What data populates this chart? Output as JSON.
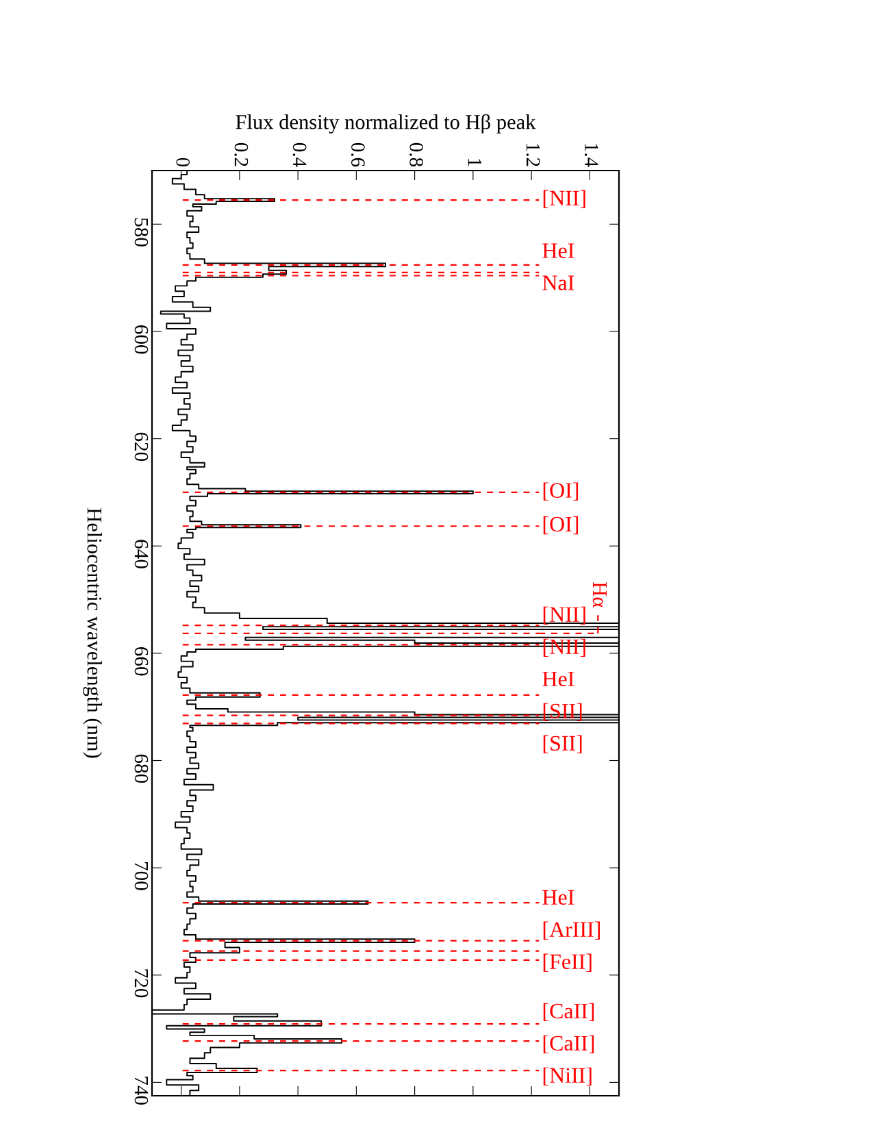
{
  "chart_data": {
    "type": "step",
    "orientation": "horizontal",
    "xlabel": "Flux density normalized to Hβ peak",
    "ylabel": "Heliocentric wavelength (nm)",
    "xlim": [
      -0.1,
      1.5
    ],
    "xticks": [
      0,
      0.2,
      0.4,
      0.6,
      0.8,
      1,
      1.2,
      1.4
    ],
    "ylim": [
      742.5,
      570
    ],
    "yticks": [
      580,
      600,
      620,
      640,
      660,
      680,
      700,
      720,
      740
    ],
    "grid": false,
    "legend": false,
    "series": [
      {
        "color": "#000000",
        "x": [
          570.5,
          571,
          572,
          573,
          574,
          575,
          575.5,
          576,
          576.5,
          577,
          578,
          579,
          580,
          581,
          582,
          583,
          584,
          585,
          586,
          587,
          587.6,
          588.2,
          589.0,
          589.6,
          590.2,
          591,
          592,
          593,
          594,
          595,
          596,
          596.5,
          597,
          598,
          599,
          600,
          601,
          602,
          603,
          604,
          605,
          606,
          607,
          608,
          609,
          610,
          611,
          612,
          613,
          614,
          615,
          616,
          617,
          618,
          619,
          620,
          621,
          622,
          623,
          624,
          625,
          625.5,
          626,
          627,
          628,
          629,
          629.6,
          630.0,
          630.5,
          631,
          632,
          633,
          634,
          635,
          635.8,
          636.3,
          636.8,
          637,
          638,
          639,
          640,
          641,
          642,
          643,
          644,
          645,
          646,
          647,
          648,
          649,
          650,
          651,
          652,
          653,
          654,
          654.8,
          655.3,
          655.8,
          656.3,
          656.8,
          657.3,
          657.8,
          658.4,
          659,
          659.5,
          660,
          661,
          662,
          663,
          664,
          665,
          666,
          667,
          667.8,
          668.5,
          669,
          670,
          670.7,
          671.2,
          671.7,
          672.2,
          672.7,
          673.2,
          673.7,
          674,
          675,
          676,
          677,
          678,
          679,
          680,
          681,
          682,
          683,
          684,
          685,
          686,
          687,
          688,
          689,
          690,
          691,
          692,
          693,
          694,
          695,
          696,
          697,
          698,
          699,
          700,
          701,
          702,
          703,
          704,
          705,
          705.9,
          706.5,
          707,
          708,
          709,
          710,
          711,
          712,
          713,
          713.6,
          714.2,
          715.5,
          716.2,
          717.2,
          718,
          719,
          720,
          721,
          722,
          723,
          724,
          725,
          726,
          727,
          727.5,
          728,
          729.1,
          729.8,
          730.3,
          731,
          731.5,
          732.3,
          733,
          734,
          735,
          736,
          737,
          737.8,
          738.5,
          739,
          740,
          741,
          742
        ],
        "values": [
          0.02,
          0.0,
          -0.03,
          0.01,
          0.05,
          0.08,
          0.32,
          0.12,
          0.04,
          0.07,
          0.02,
          0.04,
          0.03,
          0.06,
          0.02,
          0.03,
          0.04,
          0.02,
          0.03,
          0.08,
          0.7,
          0.3,
          0.36,
          0.28,
          0.05,
          0.02,
          -0.02,
          0.01,
          -0.03,
          0.04,
          0.1,
          -0.07,
          0.01,
          0.03,
          -0.05,
          0.05,
          0.02,
          0.0,
          0.04,
          -0.01,
          0.03,
          0.0,
          0.04,
          0.0,
          -0.02,
          0.02,
          -0.03,
          0.03,
          0.01,
          0.03,
          -0.01,
          0.02,
          0.0,
          -0.03,
          0.03,
          0.05,
          0.02,
          0.04,
          0.0,
          0.03,
          0.08,
          0.02,
          0.05,
          0.03,
          0.02,
          0.06,
          0.22,
          1.0,
          0.09,
          0.03,
          0.05,
          0.02,
          0.04,
          0.03,
          0.07,
          0.41,
          0.05,
          0.02,
          0.04,
          0.0,
          -0.01,
          0.03,
          0.01,
          0.08,
          0.02,
          0.04,
          0.07,
          0.03,
          0.06,
          0.02,
          0.05,
          0.04,
          0.08,
          0.2,
          0.5,
          1.5,
          0.28,
          1.5,
          1.5,
          1.5,
          0.22,
          0.8,
          1.5,
          0.35,
          0.05,
          0.02,
          0.0,
          0.04,
          0.0,
          -0.01,
          0.02,
          0.0,
          0.03,
          0.27,
          0.05,
          0.02,
          0.05,
          0.16,
          0.8,
          1.5,
          0.4,
          1.5,
          0.33,
          0.03,
          0.04,
          0.02,
          0.03,
          0.05,
          0.02,
          0.05,
          0.03,
          0.06,
          0.02,
          0.05,
          0.01,
          0.11,
          0.03,
          0.05,
          0.02,
          0.04,
          0.0,
          0.03,
          -0.02,
          0.02,
          0.03,
          0.01,
          0.0,
          0.07,
          0.02,
          0.06,
          0.03,
          0.02,
          0.05,
          0.03,
          0.04,
          0.02,
          0.06,
          0.64,
          0.04,
          0.02,
          0.05,
          0.03,
          0.02,
          0.01,
          0.05,
          0.8,
          0.15,
          0.2,
          0.03,
          0.05,
          0.01,
          0.03,
          0.02,
          -0.02,
          0.05,
          0.01,
          0.1,
          0.02,
          0.01,
          -0.1,
          0.33,
          0.18,
          0.48,
          -0.05,
          0.08,
          0.03,
          0.25,
          0.55,
          0.2,
          0.1,
          0.08,
          0.03,
          0.12,
          0.26,
          0.02,
          0.04,
          -0.05,
          0.06,
          0.03
        ]
      }
    ],
    "ref_lines": [
      {
        "axis": "y",
        "value": 575.5,
        "label": "[NII]",
        "color": "#ff0000",
        "line_style": "dashed"
      },
      {
        "axis": "y",
        "value": 587.6,
        "label": "HeI",
        "color": "#ff0000",
        "line_style": "dashed"
      },
      {
        "axis": "y",
        "value": 589.0,
        "label": "NaI",
        "color": "#ff0000",
        "line_style": "dashed"
      },
      {
        "axis": "y",
        "value": 589.6,
        "label": null,
        "color": "#ff0000",
        "line_style": "dashed"
      },
      {
        "axis": "y",
        "value": 630.0,
        "label": "[OI]",
        "color": "#ff0000",
        "line_style": "dashed"
      },
      {
        "axis": "y",
        "value": 636.3,
        "label": "[OI]",
        "color": "#ff0000",
        "line_style": "dashed"
      },
      {
        "axis": "y",
        "value": 654.8,
        "label": "[NII]",
        "color": "#ff0000",
        "line_style": "dashed"
      },
      {
        "axis": "y",
        "value": 656.3,
        "label": "Hα",
        "color": "#ff0000",
        "line_style": "dashed"
      },
      {
        "axis": "y",
        "value": 658.4,
        "label": "[NII]",
        "color": "#ff0000",
        "line_style": "dashed"
      },
      {
        "axis": "y",
        "value": 667.8,
        "label": "HeI",
        "color": "#ff0000",
        "line_style": "dashed"
      },
      {
        "axis": "y",
        "value": 671.6,
        "label": "[SII]",
        "color": "#ff0000",
        "line_style": "dashed"
      },
      {
        "axis": "y",
        "value": 673.1,
        "label": "[SII]",
        "color": "#ff0000",
        "line_style": "dashed"
      },
      {
        "axis": "y",
        "value": 706.5,
        "label": "HeI",
        "color": "#ff0000",
        "line_style": "dashed"
      },
      {
        "axis": "y",
        "value": 713.6,
        "label": "[ArIII]",
        "color": "#ff0000",
        "line_style": "dashed"
      },
      {
        "axis": "y",
        "value": 715.5,
        "label": "[FeII]",
        "color": "#ff0000",
        "line_style": "dashed"
      },
      {
        "axis": "y",
        "value": 717.2,
        "label": null,
        "color": "#ff0000",
        "line_style": "dashed"
      },
      {
        "axis": "y",
        "value": 729.1,
        "label": "[CaII]",
        "color": "#ff0000",
        "line_style": "dashed"
      },
      {
        "axis": "y",
        "value": 732.3,
        "label": "[CaII]",
        "color": "#ff0000",
        "line_style": "dashed"
      },
      {
        "axis": "y",
        "value": 737.8,
        "label": "[NiII]",
        "color": "#ff0000",
        "line_style": "dashed"
      }
    ]
  }
}
